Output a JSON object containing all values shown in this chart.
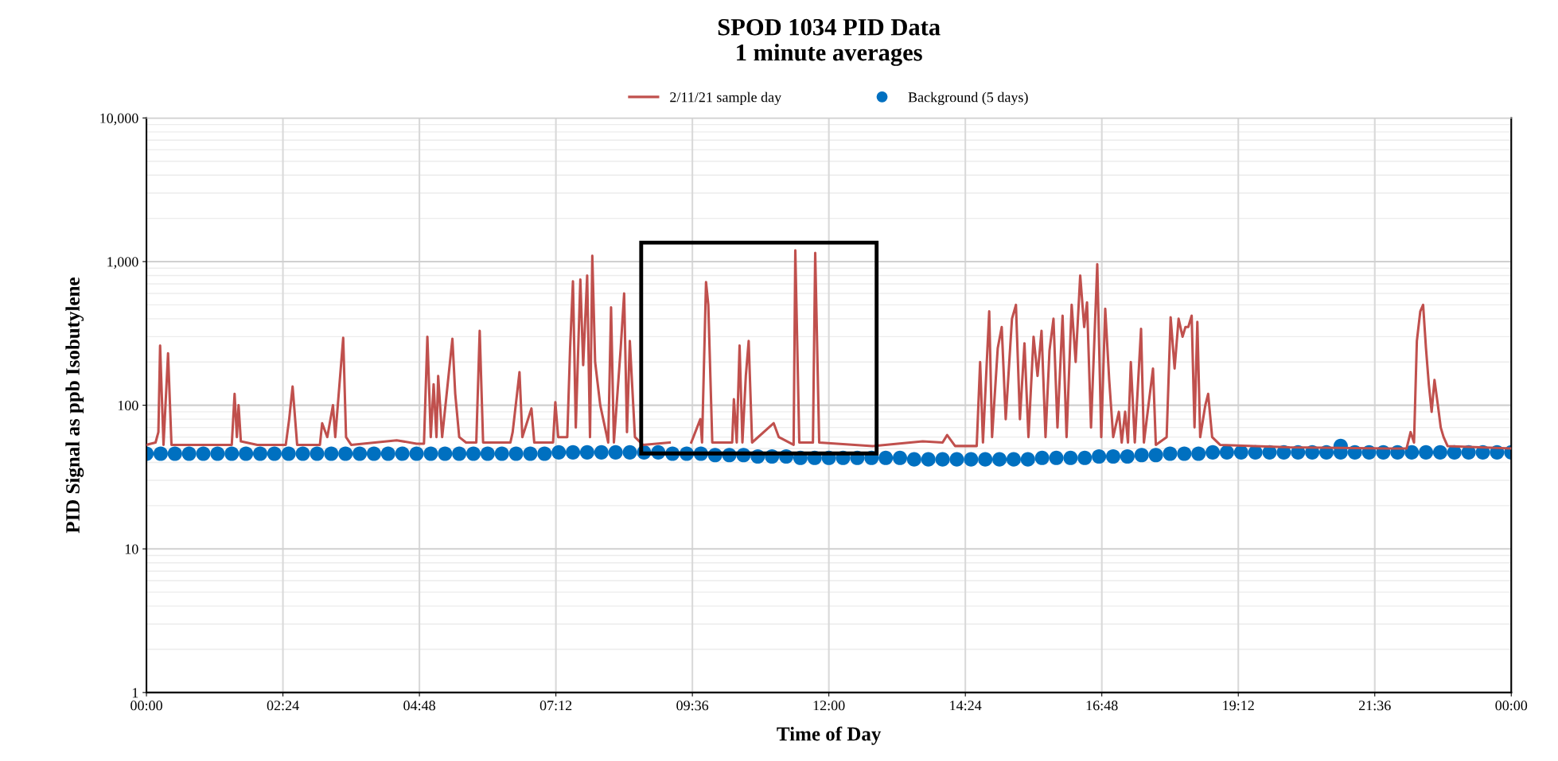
{
  "chart_data": {
    "type": "line",
    "title": "SPOD 1034 PID Data\n1 minute averages",
    "xlabel": "Time of Day",
    "ylabel": "PID Signal as ppb Isobutylene",
    "xlim": [
      0,
      24
    ],
    "xticks": [
      {
        "value": 0,
        "label": "00:00"
      },
      {
        "value": 2.4,
        "label": "02:24"
      },
      {
        "value": 4.8,
        "label": "04:48"
      },
      {
        "value": 7.2,
        "label": "07:12"
      },
      {
        "value": 9.6,
        "label": "09:36"
      },
      {
        "value": 12,
        "label": "12:00"
      },
      {
        "value": 14.4,
        "label": "14:24"
      },
      {
        "value": 16.8,
        "label": "16:48"
      },
      {
        "value": 19.2,
        "label": "19:12"
      },
      {
        "value": 21.6,
        "label": "21:36"
      },
      {
        "value": 24,
        "label": "00:00"
      }
    ],
    "ylim": [
      1,
      10000
    ],
    "yticks": [
      1,
      10,
      100,
      {
        "value": 1000,
        "label": "1,000"
      },
      {
        "value": 10000,
        "label": "10,000"
      }
    ],
    "log": "y",
    "grid": true,
    "legend": "top",
    "series": [
      {
        "name": "2/11/21 sample day",
        "color": "#c0504d",
        "marker": "none",
        "x": [
          0,
          0.16,
          0.21,
          0.24,
          0.3,
          0.38,
          0.44,
          1.5,
          1.55,
          1.59,
          1.62,
          1.66,
          1.95,
          2.45,
          2.51,
          2.57,
          2.65,
          3.05,
          3.09,
          3.18,
          3.28,
          3.32,
          3.46,
          3.51,
          3.6,
          4.4,
          4.75,
          4.88,
          4.94,
          5.0,
          5.05,
          5.1,
          5.13,
          5.2,
          5.38,
          5.43,
          5.5,
          5.62,
          5.8,
          5.86,
          5.92,
          6.4,
          6.44,
          6.56,
          6.61,
          6.77,
          6.82,
          7.15,
          7.19,
          7.24,
          7.4,
          7.45,
          7.5,
          7.55,
          7.63,
          7.68,
          7.75,
          7.8,
          7.84,
          7.89,
          7.98,
          8.12,
          8.17,
          8.22,
          8.34,
          8.4,
          8.45,
          8.5,
          8.59,
          8.73,
          9.2,
          9.3,
          9.58,
          9.74,
          9.77,
          9.84,
          9.88,
          9.95,
          10.3,
          10.33,
          10.38,
          10.43,
          10.48,
          10.54,
          10.59,
          10.65,
          11.03,
          11.12,
          11.38,
          11.41,
          11.48,
          11.72,
          11.76,
          11.83,
          12.77,
          13.65,
          14.0,
          14.08,
          14.22,
          14.6,
          14.66,
          14.71,
          14.82,
          14.87,
          14.97,
          15.04,
          15.11,
          15.22,
          15.29,
          15.36,
          15.44,
          15.51,
          15.6,
          15.67,
          15.74,
          15.81,
          15.88,
          15.95,
          16.02,
          16.11,
          16.18,
          16.27,
          16.34,
          16.42,
          16.49,
          16.54,
          16.61,
          16.72,
          16.79,
          16.86,
          16.93,
          17.0,
          17.1,
          17.15,
          17.21,
          17.26,
          17.31,
          17.38,
          17.49,
          17.54,
          17.7,
          17.75,
          17.94,
          18.01,
          18.08,
          18.15,
          18.22,
          18.27,
          18.32,
          18.38,
          18.43,
          18.48,
          18.53,
          18.62,
          18.67,
          18.74,
          18.88,
          20.1,
          21.85,
          22.16,
          22.23,
          22.29,
          22.34,
          22.4,
          22.45,
          22.5,
          22.55,
          22.6,
          22.65,
          22.71,
          22.76,
          22.81,
          22.88,
          24
        ],
        "values": [
          53,
          55,
          65,
          260,
          53,
          230,
          53,
          53,
          120,
          60,
          100,
          56,
          53,
          53,
          80,
          135,
          53,
          53,
          75,
          60,
          100,
          60,
          295,
          60,
          53,
          57,
          54,
          54,
          300,
          60,
          140,
          60,
          160,
          60,
          290,
          120,
          60,
          55,
          55,
          330,
          55,
          55,
          65,
          170,
          60,
          95,
          55,
          55,
          105,
          60,
          60,
          250,
          730,
          70,
          750,
          190,
          800,
          60,
          1100,
          200,
          100,
          55,
          480,
          55,
          250,
          600,
          65,
          280,
          60,
          53,
          55,
          null,
          55,
          80,
          55,
          720,
          500,
          55,
          55,
          110,
          55,
          260,
          55,
          160,
          280,
          55,
          75,
          60,
          53,
          1200,
          55,
          55,
          1150,
          55,
          52,
          56,
          55,
          62,
          52,
          52,
          200,
          55,
          450,
          60,
          250,
          350,
          80,
          400,
          500,
          80,
          270,
          60,
          300,
          160,
          330,
          60,
          240,
          400,
          70,
          420,
          60,
          500,
          200,
          800,
          350,
          520,
          70,
          960,
          60,
          470,
          150,
          60,
          90,
          55,
          90,
          55,
          200,
          55,
          340,
          55,
          180,
          53,
          60,
          410,
          180,
          400,
          300,
          350,
          350,
          420,
          70,
          380,
          60,
          100,
          120,
          60,
          53,
          51,
          50,
          50,
          65,
          55,
          280,
          450,
          500,
          250,
          140,
          90,
          150,
          100,
          70,
          60,
          52,
          50
        ]
      },
      {
        "name": "Background (5 days)",
        "type": "scatter",
        "color": "#0070c0",
        "marker": "circle",
        "x": [
          0,
          0.25,
          0.5,
          0.75,
          1,
          1.25,
          1.5,
          1.75,
          2,
          2.25,
          2.5,
          2.75,
          3,
          3.25,
          3.5,
          3.75,
          4,
          4.25,
          4.5,
          4.75,
          5,
          5.25,
          5.5,
          5.75,
          6,
          6.25,
          6.5,
          6.75,
          7,
          7.25,
          7.5,
          7.75,
          8,
          8.25,
          8.5,
          8.75,
          9,
          9.25,
          9.5,
          9.75,
          10,
          10.25,
          10.5,
          10.75,
          11,
          11.25,
          11.5,
          11.75,
          12,
          12.25,
          12.5,
          12.75,
          13,
          13.25,
          13.5,
          13.75,
          14,
          14.25,
          14.5,
          14.75,
          15,
          15.25,
          15.5,
          15.75,
          16,
          16.25,
          16.5,
          16.75,
          17,
          17.25,
          17.5,
          17.75,
          18,
          18.25,
          18.5,
          18.75,
          19,
          19.25,
          19.5,
          19.75,
          20,
          20.25,
          20.5,
          20.75,
          21,
          21.25,
          21.5,
          21.75,
          22,
          22.25,
          22.5,
          22.75,
          23,
          23.25,
          23.5,
          23.75,
          24,
          21.0
        ],
        "values": [
          46,
          46,
          46,
          46,
          46,
          46,
          46,
          46,
          46,
          46,
          46,
          46,
          46,
          46,
          46,
          46,
          46,
          46,
          46,
          46,
          46,
          46,
          46,
          46,
          46,
          46,
          46,
          46,
          46,
          47,
          47,
          47,
          47,
          47,
          47,
          47,
          47,
          46,
          46,
          46,
          45,
          45,
          45,
          44,
          44,
          44,
          43,
          43,
          43,
          43,
          43,
          43,
          43,
          43,
          42,
          42,
          42,
          42,
          42,
          42,
          42,
          42,
          42,
          43,
          43,
          43,
          43,
          44,
          44,
          44,
          45,
          45,
          46,
          46,
          46,
          47,
          47,
          47,
          47,
          47,
          47,
          47,
          47,
          47,
          47,
          47,
          47,
          47,
          47,
          47,
          47,
          47,
          47,
          47,
          47,
          47,
          47,
          52
        ]
      }
    ]
  }
}
